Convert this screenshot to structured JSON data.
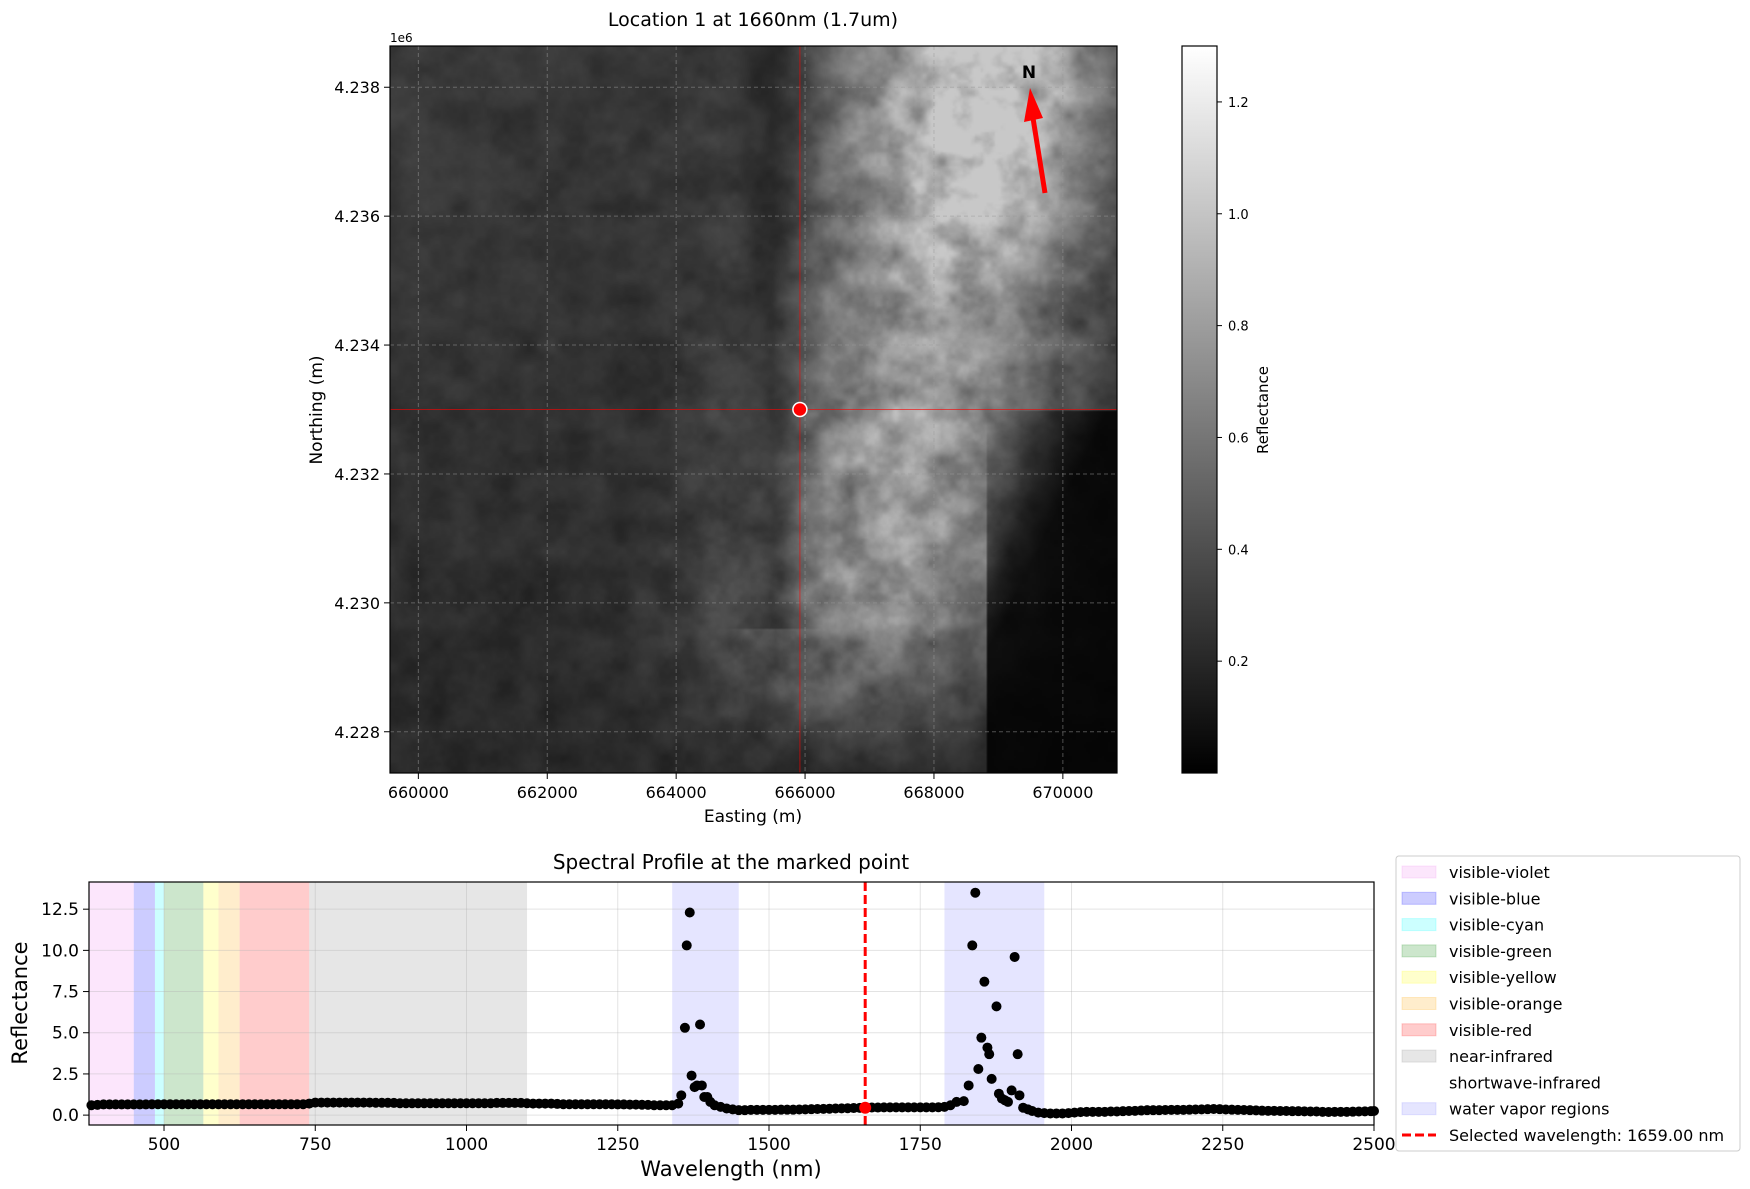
{
  "chart_data": [
    {
      "type": "heatmap",
      "title": "Location 1 at 1660nm (1.7um)",
      "xlabel": "Easting (m)",
      "ylabel": "Northing (m)",
      "y_offset_label": "1e6",
      "xlim": [
        659560,
        670840
      ],
      "ylim": [
        4227360,
        4238640
      ],
      "x_ticks": [
        660000,
        662000,
        664000,
        666000,
        668000,
        670000
      ],
      "x_tick_labels": [
        "660000",
        "662000",
        "664000",
        "666000",
        "668000",
        "670000"
      ],
      "y_ticks": [
        4238000,
        4236000,
        4234000,
        4232000,
        4230000,
        4228000
      ],
      "y_tick_labels": [
        "4.238",
        "4.236",
        "4.234",
        "4.232",
        "4.230",
        "4.228"
      ],
      "grid": true,
      "colormap": "gray",
      "colorbar": {
        "label": "Reflectance",
        "range": [
          0,
          1.3
        ],
        "ticks": [
          0.2,
          0.4,
          0.6,
          0.8,
          1.0,
          1.2
        ],
        "tick_labels": [
          "0.2",
          "0.4",
          "0.6",
          "0.8",
          "1.0",
          "1.2"
        ]
      },
      "marked_point": {
        "easting": 665920,
        "northing": 4233000,
        "color": "#ff0000"
      },
      "crosshair_color": "#ff0000",
      "north_arrow": {
        "label": "N",
        "color": "#ff0000"
      }
    },
    {
      "type": "scatter",
      "title": "Spectral Profile at the marked point",
      "xlabel": "Wavelength (nm)",
      "ylabel": "Reflectance",
      "xlim": [
        376,
        2500
      ],
      "ylim": [
        -0.6,
        14.15
      ],
      "x_ticks": [
        500,
        750,
        1000,
        1250,
        1500,
        1750,
        2000,
        2250,
        2500
      ],
      "x_tick_labels": [
        "500",
        "750",
        "1000",
        "1250",
        "1500",
        "1750",
        "2000",
        "2250",
        "2500"
      ],
      "y_ticks": [
        0,
        2.5,
        5,
        7.5,
        10,
        12.5
      ],
      "y_tick_labels": [
        "0.0",
        "2.5",
        "5.0",
        "7.5",
        "10.0",
        "12.5"
      ],
      "grid": true,
      "legend_placement": "outside-right",
      "bands": [
        {
          "name": "visible-violet",
          "range": [
            376,
            450
          ],
          "color": "#ee82ee"
        },
        {
          "name": "visible-blue",
          "range": [
            450,
            485
          ],
          "color": "#0000ff"
        },
        {
          "name": "visible-cyan",
          "range": [
            485,
            500
          ],
          "color": "#00ffff"
        },
        {
          "name": "visible-green",
          "range": [
            500,
            565
          ],
          "color": "#008000"
        },
        {
          "name": "visible-yellow",
          "range": [
            565,
            590
          ],
          "color": "#ffff00"
        },
        {
          "name": "visible-orange",
          "range": [
            590,
            625
          ],
          "color": "#ffa500"
        },
        {
          "name": "visible-red",
          "range": [
            625,
            740
          ],
          "color": "#ff0000"
        },
        {
          "name": "near-infrared",
          "range": [
            740,
            1100
          ],
          "color": "#808080"
        },
        {
          "name": "shortwave-infrared",
          "range": [
            1100,
            2500
          ],
          "color": "#ffffff"
        },
        {
          "name": "water vapor regions",
          "ranges": [
            [
              1340,
              1450
            ],
            [
              1790,
              1955
            ]
          ],
          "color": "#0000ff"
        }
      ],
      "selected_wavelength": {
        "label": "Selected wavelength: 1659.00 nm",
        "value": 1659,
        "reflectance": 0.45,
        "color": "#ff0000"
      },
      "points": [
        [
          380,
          0.6
        ],
        [
          390,
          0.62
        ],
        [
          400,
          0.65
        ],
        [
          410,
          0.65
        ],
        [
          420,
          0.65
        ],
        [
          430,
          0.65
        ],
        [
          440,
          0.65
        ],
        [
          450,
          0.65
        ],
        [
          460,
          0.65
        ],
        [
          470,
          0.65
        ],
        [
          480,
          0.66
        ],
        [
          490,
          0.66
        ],
        [
          500,
          0.66
        ],
        [
          510,
          0.66
        ],
        [
          520,
          0.66
        ],
        [
          530,
          0.66
        ],
        [
          540,
          0.66
        ],
        [
          550,
          0.66
        ],
        [
          560,
          0.66
        ],
        [
          570,
          0.66
        ],
        [
          580,
          0.66
        ],
        [
          590,
          0.66
        ],
        [
          600,
          0.66
        ],
        [
          610,
          0.66
        ],
        [
          620,
          0.66
        ],
        [
          630,
          0.66
        ],
        [
          640,
          0.66
        ],
        [
          650,
          0.66
        ],
        [
          660,
          0.66
        ],
        [
          670,
          0.66
        ],
        [
          680,
          0.66
        ],
        [
          690,
          0.66
        ],
        [
          700,
          0.66
        ],
        [
          710,
          0.66
        ],
        [
          720,
          0.66
        ],
        [
          730,
          0.66
        ],
        [
          740,
          0.7
        ],
        [
          750,
          0.76
        ],
        [
          760,
          0.76
        ],
        [
          770,
          0.76
        ],
        [
          780,
          0.76
        ],
        [
          790,
          0.76
        ],
        [
          800,
          0.76
        ],
        [
          810,
          0.76
        ],
        [
          820,
          0.76
        ],
        [
          830,
          0.76
        ],
        [
          840,
          0.76
        ],
        [
          850,
          0.75
        ],
        [
          860,
          0.75
        ],
        [
          870,
          0.75
        ],
        [
          880,
          0.74
        ],
        [
          890,
          0.72
        ],
        [
          900,
          0.72
        ],
        [
          910,
          0.72
        ],
        [
          920,
          0.72
        ],
        [
          930,
          0.72
        ],
        [
          940,
          0.72
        ],
        [
          950,
          0.72
        ],
        [
          960,
          0.72
        ],
        [
          970,
          0.72
        ],
        [
          980,
          0.72
        ],
        [
          990,
          0.72
        ],
        [
          1000,
          0.72
        ],
        [
          1010,
          0.72
        ],
        [
          1020,
          0.72
        ],
        [
          1030,
          0.72
        ],
        [
          1040,
          0.72
        ],
        [
          1050,
          0.74
        ],
        [
          1060,
          0.74
        ],
        [
          1070,
          0.74
        ],
        [
          1080,
          0.74
        ],
        [
          1090,
          0.74
        ],
        [
          1100,
          0.72
        ],
        [
          1110,
          0.7
        ],
        [
          1120,
          0.7
        ],
        [
          1130,
          0.7
        ],
        [
          1140,
          0.7
        ],
        [
          1150,
          0.68
        ],
        [
          1160,
          0.66
        ],
        [
          1170,
          0.66
        ],
        [
          1180,
          0.66
        ],
        [
          1190,
          0.66
        ],
        [
          1200,
          0.66
        ],
        [
          1210,
          0.66
        ],
        [
          1220,
          0.66
        ],
        [
          1230,
          0.66
        ],
        [
          1240,
          0.66
        ],
        [
          1250,
          0.65
        ],
        [
          1260,
          0.65
        ],
        [
          1270,
          0.64
        ],
        [
          1280,
          0.64
        ],
        [
          1290,
          0.63
        ],
        [
          1300,
          0.62
        ],
        [
          1310,
          0.6
        ],
        [
          1320,
          0.6
        ],
        [
          1330,
          0.6
        ],
        [
          1340,
          0.6
        ],
        [
          1350,
          0.7
        ],
        [
          1355,
          1.2
        ],
        [
          1361,
          5.3
        ],
        [
          1364,
          10.3
        ],
        [
          1369,
          12.3
        ],
        [
          1372,
          2.4
        ],
        [
          1377,
          1.7
        ],
        [
          1381,
          1.8
        ],
        [
          1386,
          5.5
        ],
        [
          1389,
          1.8
        ],
        [
          1393,
          1.1
        ],
        [
          1398,
          1.1
        ],
        [
          1403,
          0.8
        ],
        [
          1410,
          0.6
        ],
        [
          1420,
          0.5
        ],
        [
          1430,
          0.4
        ],
        [
          1440,
          0.35
        ],
        [
          1450,
          0.3
        ],
        [
          1460,
          0.3
        ],
        [
          1470,
          0.32
        ],
        [
          1480,
          0.32
        ],
        [
          1490,
          0.32
        ],
        [
          1500,
          0.32
        ],
        [
          1510,
          0.32
        ],
        [
          1520,
          0.33
        ],
        [
          1530,
          0.33
        ],
        [
          1540,
          0.33
        ],
        [
          1550,
          0.34
        ],
        [
          1560,
          0.35
        ],
        [
          1570,
          0.36
        ],
        [
          1580,
          0.37
        ],
        [
          1590,
          0.38
        ],
        [
          1600,
          0.39
        ],
        [
          1610,
          0.4
        ],
        [
          1620,
          0.41
        ],
        [
          1630,
          0.42
        ],
        [
          1640,
          0.43
        ],
        [
          1650,
          0.44
        ],
        [
          1659,
          0.45
        ],
        [
          1670,
          0.46
        ],
        [
          1680,
          0.46
        ],
        [
          1690,
          0.47
        ],
        [
          1700,
          0.47
        ],
        [
          1710,
          0.47
        ],
        [
          1720,
          0.47
        ],
        [
          1730,
          0.47
        ],
        [
          1740,
          0.47
        ],
        [
          1750,
          0.47
        ],
        [
          1760,
          0.47
        ],
        [
          1770,
          0.47
        ],
        [
          1780,
          0.48
        ],
        [
          1790,
          0.5
        ],
        [
          1800,
          0.6
        ],
        [
          1810,
          0.8
        ],
        [
          1822,
          0.85
        ],
        [
          1830,
          1.8
        ],
        [
          1836,
          10.3
        ],
        [
          1841,
          13.5
        ],
        [
          1846,
          2.8
        ],
        [
          1851,
          4.7
        ],
        [
          1856,
          8.1
        ],
        [
          1861,
          4.1
        ],
        [
          1864,
          3.7
        ],
        [
          1868,
          2.2
        ],
        [
          1876,
          6.6
        ],
        [
          1880,
          1.3
        ],
        [
          1885,
          1.0
        ],
        [
          1890,
          0.9
        ],
        [
          1895,
          0.8
        ],
        [
          1901,
          1.5
        ],
        [
          1906,
          9.6
        ],
        [
          1911,
          3.7
        ],
        [
          1914,
          1.2
        ],
        [
          1920,
          0.45
        ],
        [
          1928,
          0.35
        ],
        [
          1935,
          0.25
        ],
        [
          1945,
          0.15
        ],
        [
          1955,
          0.12
        ],
        [
          1965,
          0.1
        ],
        [
          1975,
          0.1
        ],
        [
          1985,
          0.1
        ],
        [
          1995,
          0.12
        ],
        [
          2005,
          0.15
        ],
        [
          2015,
          0.18
        ],
        [
          2025,
          0.2
        ],
        [
          2035,
          0.2
        ],
        [
          2045,
          0.2
        ],
        [
          2055,
          0.2
        ],
        [
          2065,
          0.22
        ],
        [
          2075,
          0.22
        ],
        [
          2085,
          0.24
        ],
        [
          2095,
          0.25
        ],
        [
          2105,
          0.26
        ],
        [
          2115,
          0.28
        ],
        [
          2125,
          0.3
        ],
        [
          2135,
          0.3
        ],
        [
          2145,
          0.3
        ],
        [
          2155,
          0.31
        ],
        [
          2165,
          0.32
        ],
        [
          2175,
          0.32
        ],
        [
          2185,
          0.32
        ],
        [
          2195,
          0.33
        ],
        [
          2205,
          0.34
        ],
        [
          2215,
          0.35
        ],
        [
          2225,
          0.36
        ],
        [
          2235,
          0.37
        ],
        [
          2245,
          0.36
        ],
        [
          2255,
          0.34
        ],
        [
          2265,
          0.33
        ],
        [
          2275,
          0.32
        ],
        [
          2285,
          0.31
        ],
        [
          2295,
          0.3
        ],
        [
          2305,
          0.29
        ],
        [
          2315,
          0.27
        ],
        [
          2325,
          0.26
        ],
        [
          2335,
          0.26
        ],
        [
          2345,
          0.25
        ],
        [
          2355,
          0.25
        ],
        [
          2365,
          0.24
        ],
        [
          2375,
          0.24
        ],
        [
          2385,
          0.23
        ],
        [
          2395,
          0.22
        ],
        [
          2405,
          0.22
        ],
        [
          2415,
          0.2
        ],
        [
          2425,
          0.19
        ],
        [
          2435,
          0.2
        ],
        [
          2445,
          0.2
        ],
        [
          2455,
          0.2
        ],
        [
          2465,
          0.21
        ],
        [
          2475,
          0.22
        ],
        [
          2485,
          0.23
        ],
        [
          2495,
          0.24
        ],
        [
          2500,
          0.25
        ]
      ]
    }
  ]
}
